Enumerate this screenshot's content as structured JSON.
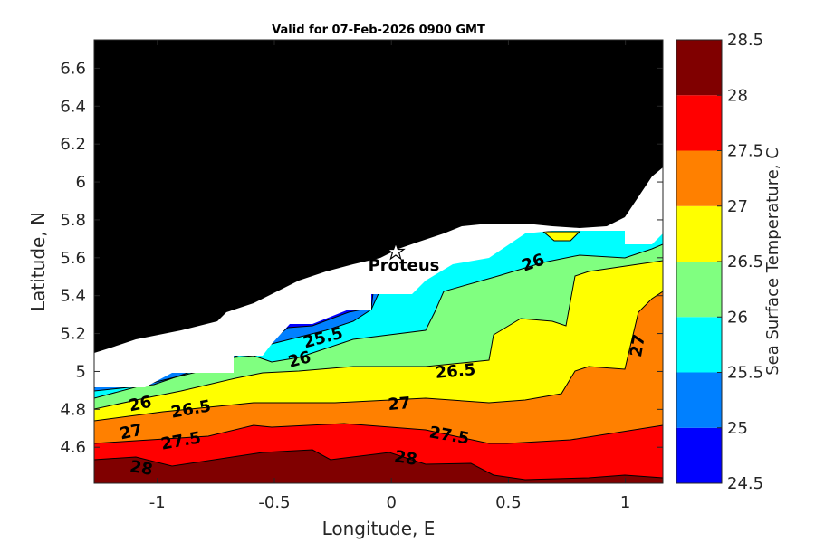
{
  "chart_data": {
    "type": "contourf",
    "title": "Valid for 07-Feb-2026 0900 GMT",
    "xlabel": "Longitude, E",
    "ylabel": "Latitude, N",
    "xlim": [
      -1.27,
      1.16
    ],
    "ylim": [
      4.41,
      6.75
    ],
    "xticks": [
      -1,
      -0.5,
      0,
      0.5,
      1
    ],
    "xtick_labels": [
      "-1",
      "-0.5",
      "0",
      "0.5",
      "1"
    ],
    "yticks": [
      4.6,
      4.8,
      5,
      5.2,
      5.4,
      5.6,
      5.8,
      6,
      6.2,
      6.4,
      6.6
    ],
    "ytick_labels": [
      "4.6",
      "4.8",
      "5",
      "5.2",
      "5.4",
      "5.6",
      "5.8",
      "6",
      "6.2",
      "6.4",
      "6.6"
    ],
    "colorbar": {
      "label": "Sea Surface Temperature, C",
      "levels": [
        24.5,
        25,
        25.5,
        26,
        26.5,
        27,
        27.5,
        28,
        28.5
      ],
      "tick_labels": [
        "24.5",
        "25",
        "25.5",
        "26",
        "26.5",
        "27",
        "27.5",
        "28",
        "28.5"
      ],
      "colors": [
        "#0000ff",
        "#0080ff",
        "#00ffff",
        "#80ff80",
        "#ffff00",
        "#ff8000",
        "#ff0000",
        "#800000"
      ]
    },
    "contour_labels": [
      "28",
      "27.5",
      "27",
      "26.5",
      "26",
      "28",
      "27.5",
      "27",
      "26.5",
      "26",
      "25.5",
      "26",
      "27"
    ],
    "station": {
      "name": "Proteus",
      "lon": 0.02,
      "lat": 5.63,
      "marker": "star-icon"
    },
    "land_color": "#000000",
    "mask_color": "#ffffff"
  }
}
